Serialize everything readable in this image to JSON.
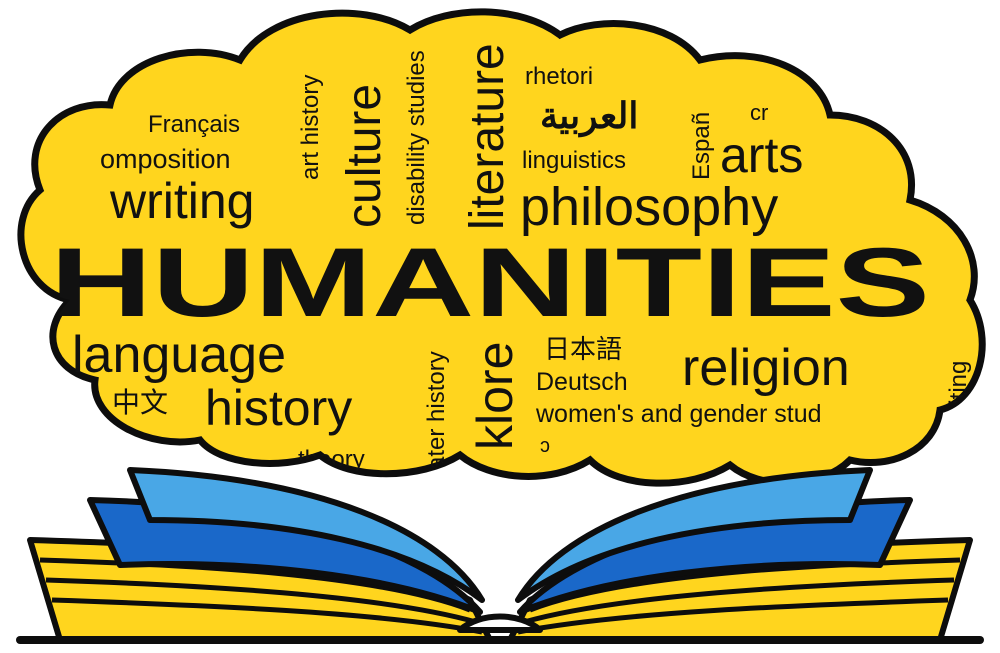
{
  "colors": {
    "cloud_fill": "#ffd51e",
    "outline": "#0d0d0d",
    "page_blue_dark": "#1a68c9",
    "page_blue_light": "#49a7e6",
    "page_yellow": "#ffd51e",
    "background": "#ffffff"
  },
  "title_word": "HUMANITIES",
  "words": {
    "francais": "Français",
    "composition": "omposition",
    "art_history": "art history",
    "culture": "culture",
    "disability_studies": "disability studies",
    "literature": "literature",
    "rhetoric": "rhetori",
    "arabic": "العربية",
    "espanol": "Españ",
    "cr": "cr",
    "linguistics": "linguistics",
    "arts": "arts",
    "writing_top": "writing",
    "philosophy": "philosophy",
    "language": "language",
    "art_history_lower": "ater history",
    "folklore": "klore",
    "japanese": "日本語",
    "deutsch": "Deutsch",
    "religion": "religion",
    "writing_right": "writing",
    "chinese": "中文",
    "history": "history",
    "womens_gender": "women's and gender stud",
    "theory": "theory"
  },
  "icons": {
    "cloud": "word-cloud-shape",
    "book": "open-book-icon"
  }
}
